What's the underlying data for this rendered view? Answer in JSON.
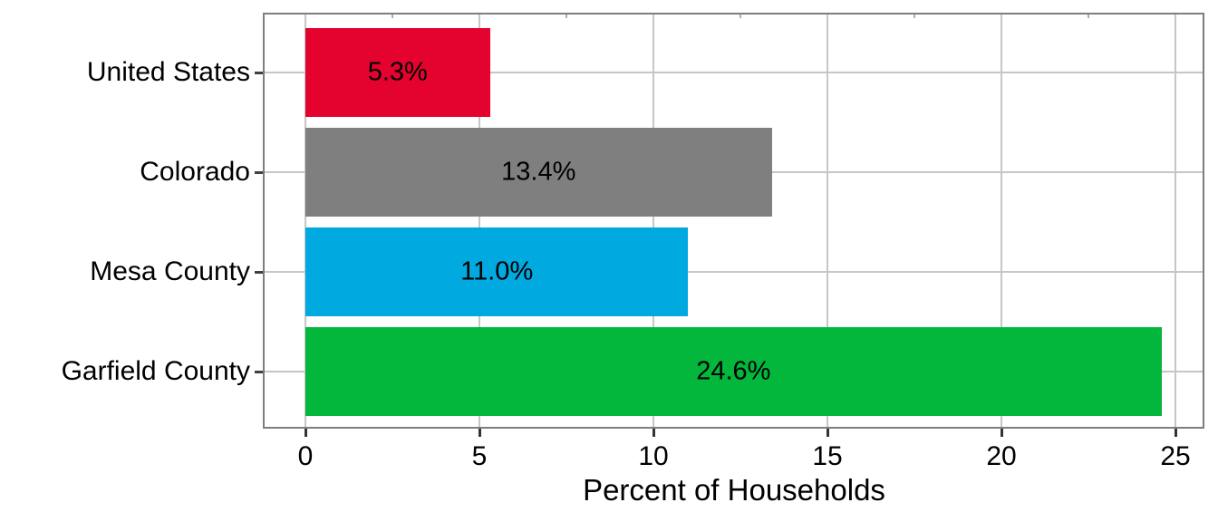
{
  "chart_data": {
    "type": "bar",
    "orientation": "horizontal",
    "title": "",
    "xlabel": "Percent of Households",
    "ylabel": "",
    "categories": [
      "United States",
      "Colorado",
      "Mesa County",
      "Garfield County"
    ],
    "values": [
      5.3,
      13.4,
      11.0,
      24.6
    ],
    "bar_labels": [
      "5.3%",
      "13.4%",
      "11.0%",
      "24.6%"
    ],
    "bar_colors": [
      "#E4032E",
      "#7F7F7F",
      "#00A9E0",
      "#02B73C"
    ],
    "xlim": [
      0,
      25.8
    ],
    "x_major_ticks": [
      0,
      5,
      10,
      15,
      20,
      25
    ],
    "x_tick_labels": [
      "0",
      "5",
      "10",
      "15",
      "20",
      "25"
    ],
    "x_minor_ticks": [
      2.5,
      7.5,
      12.5,
      17.5,
      22.5
    ],
    "grid": "major vertical gridlines + horizontal gridline at each category center",
    "legend": "none",
    "colors": {
      "panel_border": "#7E7E7E",
      "gridline": "#C6C6C6",
      "minor_tick": "#ADADAD",
      "axis_tick": "#333333",
      "text": "#000000",
      "background": "#FFFFFF"
    }
  }
}
